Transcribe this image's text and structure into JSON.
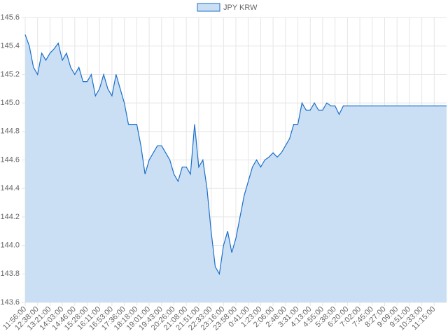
{
  "chart_data": {
    "type": "area",
    "legend": "top",
    "series": [
      {
        "name": "JPY KRW",
        "color": "#1a6fc9",
        "fill": "#cadff4",
        "values": [
          145.48,
          145.4,
          145.25,
          145.2,
          145.35,
          145.3,
          145.35,
          145.38,
          145.42,
          145.3,
          145.35,
          145.25,
          145.2,
          145.25,
          145.15,
          145.15,
          145.2,
          145.05,
          145.1,
          145.2,
          145.1,
          145.05,
          145.2,
          145.1,
          145.0,
          144.85,
          144.85,
          144.85,
          144.7,
          144.5,
          144.6,
          144.65,
          144.7,
          144.7,
          144.65,
          144.6,
          144.5,
          144.45,
          144.55,
          144.55,
          144.5,
          144.85,
          144.55,
          144.6,
          144.4,
          144.1,
          143.85,
          143.8,
          144.0,
          144.1,
          143.95,
          144.05,
          144.2,
          144.35,
          144.45,
          144.55,
          144.6,
          144.55,
          144.6,
          144.62,
          144.65,
          144.62,
          144.65,
          144.7,
          144.75,
          144.85,
          144.85,
          145.0,
          144.95,
          144.95,
          145.0,
          144.95,
          144.95,
          145.0,
          144.98,
          144.98,
          144.92,
          144.98,
          144.98,
          144.98,
          144.98,
          144.98,
          144.98,
          144.98,
          144.98,
          144.98,
          144.98,
          144.98,
          144.98,
          144.98,
          144.98,
          144.98,
          144.98,
          144.98,
          144.98,
          144.98,
          144.98,
          144.98,
          144.98,
          144.98,
          144.98,
          144.98,
          144.98
        ]
      }
    ],
    "categories": [
      "11:56:00",
      null,
      null,
      "12:38:00",
      null,
      null,
      "13:21:00",
      null,
      null,
      "14:03:00",
      null,
      null,
      "14:46:00",
      null,
      null,
      "15:28:00",
      null,
      null,
      "16:11:00",
      null,
      null,
      "16:53:00",
      null,
      null,
      "17:36:00",
      null,
      null,
      "18:18:00",
      null,
      null,
      "19:01:00",
      null,
      null,
      "19:43:00",
      null,
      null,
      "20:26:00",
      null,
      null,
      "21:08:00",
      null,
      null,
      "21:51:00",
      null,
      null,
      "22:33:00",
      null,
      null,
      "23:16:00",
      null,
      null,
      "23:58:00",
      null,
      null,
      "0:41:00",
      null,
      null,
      "1:23:00",
      null,
      null,
      "2:06:00",
      null,
      null,
      "2:48:00",
      null,
      null,
      "3:31:00",
      null,
      null,
      "4:13:00",
      null,
      null,
      "4:55:00",
      null,
      null,
      "5:38:00",
      null,
      null,
      "6:20:00",
      null,
      null,
      "7:02:00",
      null,
      null,
      "7:45:00",
      null,
      null,
      "8:27:00",
      null,
      null,
      "9:09:00",
      null,
      null,
      "9:51:00",
      null,
      null,
      "10:33:00",
      null,
      null,
      "11:15:00",
      null,
      null,
      null
    ],
    "ylim": [
      143.6,
      145.6
    ],
    "yticks": [
      {
        "value": 143.6,
        "label": "143.6"
      },
      143.8,
      {
        "value": 144,
        "label": "144.0"
      },
      144.2,
      144.4,
      144.6,
      144.8,
      {
        "value": 145,
        "label": "145.0"
      },
      145.2,
      145.4,
      145.6
    ],
    "grid": true
  }
}
